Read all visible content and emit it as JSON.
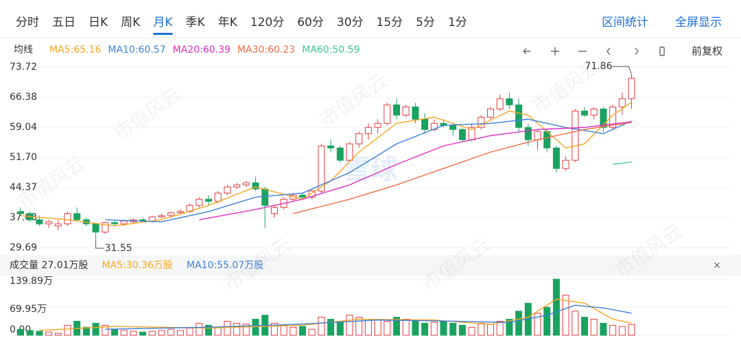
{
  "tabs": [
    "分时",
    "五日",
    "日K",
    "周K",
    "月K",
    "季K",
    "年K",
    "120分",
    "60分",
    "30分",
    "15分",
    "5分",
    "1分"
  ],
  "active_tab": 4,
  "actions": [
    "区间统计",
    "全屏显示"
  ],
  "watermark": "市值风云",
  "logo": "雪球",
  "chart_data": [
    {
      "type": "candlestick",
      "legend_title": "均线",
      "legend": [
        "MA5:65.16",
        "MA10:60.57",
        "MA20:60.39",
        "MA30:60.23",
        "MA60:50.59"
      ],
      "adjust": "前复权",
      "ylim": [
        29.69,
        73.72
      ],
      "yticks": [
        73.72,
        66.38,
        59.04,
        {
          "value": 51.7,
          "label": "51.70"
        },
        44.37,
        37.03,
        29.69
      ],
      "up_color": "#e4393c",
      "down_color": "#1aa260",
      "open": [
        38.5,
        38,
        36.5,
        35.5,
        35,
        35.5,
        38,
        36.5,
        35.5,
        33.5,
        35.8,
        35.5,
        36,
        36.5,
        36.2,
        37.2,
        37.5,
        38.2,
        38.5,
        40,
        41.5,
        41,
        43,
        44.5,
        45,
        45.5,
        44,
        38,
        39.5,
        41.5,
        42.5,
        42,
        43.5,
        54.5,
        54,
        51,
        55,
        57.5,
        59,
        60,
        64.5,
        62,
        64,
        61,
        58.5,
        60,
        59.5,
        58.5,
        56,
        59,
        61.5,
        63.5,
        66,
        64.5,
        59,
        56,
        58,
        54,
        49,
        51,
        63,
        62,
        63.5,
        59,
        64,
        66
      ],
      "high": [
        39.5,
        38.5,
        37.5,
        36.5,
        36.5,
        38.5,
        39.5,
        37,
        35.8,
        36,
        36.5,
        36.5,
        36.8,
        37,
        37.5,
        38,
        38.5,
        39,
        40.5,
        42,
        42.5,
        43.5,
        45,
        45.5,
        46,
        47,
        44.5,
        40,
        42,
        43,
        43,
        44,
        55,
        56,
        54.5,
        55.5,
        58,
        60,
        61,
        65,
        66,
        64.5,
        65,
        62.5,
        61,
        61,
        60,
        59,
        60,
        62,
        64,
        67,
        67.5,
        66,
        60,
        58.5,
        58.5,
        54.5,
        52,
        63.5,
        64,
        64,
        64,
        64.5,
        67.5,
        71.86
      ],
      "low": [
        37.5,
        36,
        35,
        34.5,
        34,
        35,
        36,
        35,
        31.55,
        33,
        35,
        35,
        35.5,
        36,
        35.8,
        36.8,
        37,
        37.8,
        38.2,
        39.5,
        40,
        40.5,
        42.5,
        44,
        44.5,
        43.5,
        34.5,
        37,
        39,
        41,
        41.5,
        41.5,
        43,
        53,
        50.5,
        50.5,
        54,
        56,
        57.5,
        59.5,
        61,
        61.5,
        60,
        57.5,
        58,
        59,
        57,
        55.5,
        55.5,
        58.5,
        61,
        63,
        63.5,
        58,
        54.5,
        53.5,
        53,
        48,
        48.5,
        50.5,
        61.5,
        61,
        58,
        58.5,
        62,
        63.5
      ],
      "close": [
        38,
        36.5,
        35.5,
        36,
        35.5,
        38,
        36.5,
        35.5,
        33.5,
        35.8,
        35.5,
        36.2,
        36.5,
        36.2,
        37.2,
        37.5,
        38.2,
        38.5,
        40,
        41.5,
        41,
        43,
        44.5,
        45,
        45.5,
        44,
        40,
        39.5,
        41.5,
        42.5,
        42,
        43.5,
        54.5,
        54,
        51,
        55,
        57.5,
        59,
        60,
        64.5,
        62,
        64,
        61,
        58.5,
        60,
        59.5,
        58.5,
        56,
        59,
        61.5,
        63.5,
        66,
        64.5,
        59,
        56,
        58,
        54,
        49,
        51,
        63,
        62,
        63.5,
        59,
        64,
        66,
        71
      ],
      "annotations": [
        {
          "index": 65,
          "label": "71.86"
        },
        {
          "index": 8,
          "label": "31.55"
        }
      ],
      "series": [
        {
          "name": "MA5",
          "color": "#f5a623",
          "x": [
            0,
            5,
            10,
            15,
            20,
            25,
            30,
            33,
            36,
            40,
            44,
            48,
            52,
            54,
            58,
            60,
            63,
            65
          ],
          "values": [
            37.5,
            36.5,
            35,
            36.5,
            40,
            44.5,
            41.5,
            46,
            53,
            60,
            61.5,
            58.5,
            63,
            62,
            54,
            55,
            62,
            65.16
          ]
        },
        {
          "name": "MA10",
          "color": "#3d7fd9",
          "x": [
            9,
            15,
            20,
            25,
            30,
            35,
            40,
            45,
            50,
            54,
            58,
            62,
            65
          ],
          "values": [
            36.5,
            36,
            38.5,
            42,
            43,
            48,
            55,
            59.5,
            60,
            61,
            59,
            57.5,
            60.57
          ]
        },
        {
          "name": "MA20",
          "color": "#d930c0",
          "x": [
            19,
            25,
            30,
            35,
            40,
            45,
            50,
            55,
            60,
            65
          ],
          "values": [
            36.5,
            39,
            41.5,
            45,
            50,
            54.5,
            57,
            58.5,
            59,
            60.39
          ]
        },
        {
          "name": "MA30",
          "color": "#f06b45",
          "x": [
            29,
            35,
            40,
            45,
            50,
            55,
            60,
            65
          ],
          "values": [
            38,
            41.5,
            45,
            49,
            53,
            56,
            58.5,
            60.23
          ]
        },
        {
          "name": "MA60",
          "color": "#3cc88f",
          "x": [
            63,
            65
          ],
          "values": [
            50,
            50.59
          ]
        }
      ]
    },
    {
      "type": "volume",
      "legend": [
        "成交量 27.01万股",
        "MA5:30.36万股",
        "MA10:55.07万股"
      ],
      "close_button": "×",
      "ylim": [
        0,
        139.89
      ],
      "yticks": [
        {
          "value": 0,
          "label": "0.00"
        },
        {
          "value": 69.95,
          "label": "69.95万"
        },
        {
          "value": 139.89,
          "label": "139.89万"
        }
      ],
      "values": [
        15,
        12,
        10,
        8,
        5,
        25,
        35,
        20,
        30,
        25,
        15,
        12,
        10,
        8,
        10,
        12,
        15,
        12,
        18,
        30,
        25,
        20,
        35,
        30,
        28,
        40,
        50,
        30,
        25,
        20,
        22,
        15,
        45,
        40,
        35,
        50,
        45,
        40,
        38,
        35,
        45,
        40,
        35,
        30,
        32,
        35,
        30,
        25,
        20,
        30,
        28,
        35,
        40,
        60,
        80,
        55,
        70,
        139.89,
        100,
        60,
        45,
        40,
        30,
        25,
        22,
        27.01
      ],
      "series": [
        {
          "name": "MA5",
          "color": "#f5a623",
          "x": [
            2,
            10,
            20,
            30,
            36,
            44,
            50,
            54,
            57,
            60,
            63,
            65
          ],
          "values": [
            12,
            22,
            18,
            25,
            40,
            38,
            27,
            45,
            90,
            80,
            40,
            30.36
          ]
        },
        {
          "name": "MA10",
          "color": "#3d7fd9",
          "x": [
            9,
            20,
            30,
            38,
            46,
            52,
            56,
            59,
            62,
            65
          ],
          "values": [
            15,
            20,
            28,
            38,
            35,
            32,
            50,
            75,
            68,
            55.07
          ]
        }
      ]
    }
  ]
}
